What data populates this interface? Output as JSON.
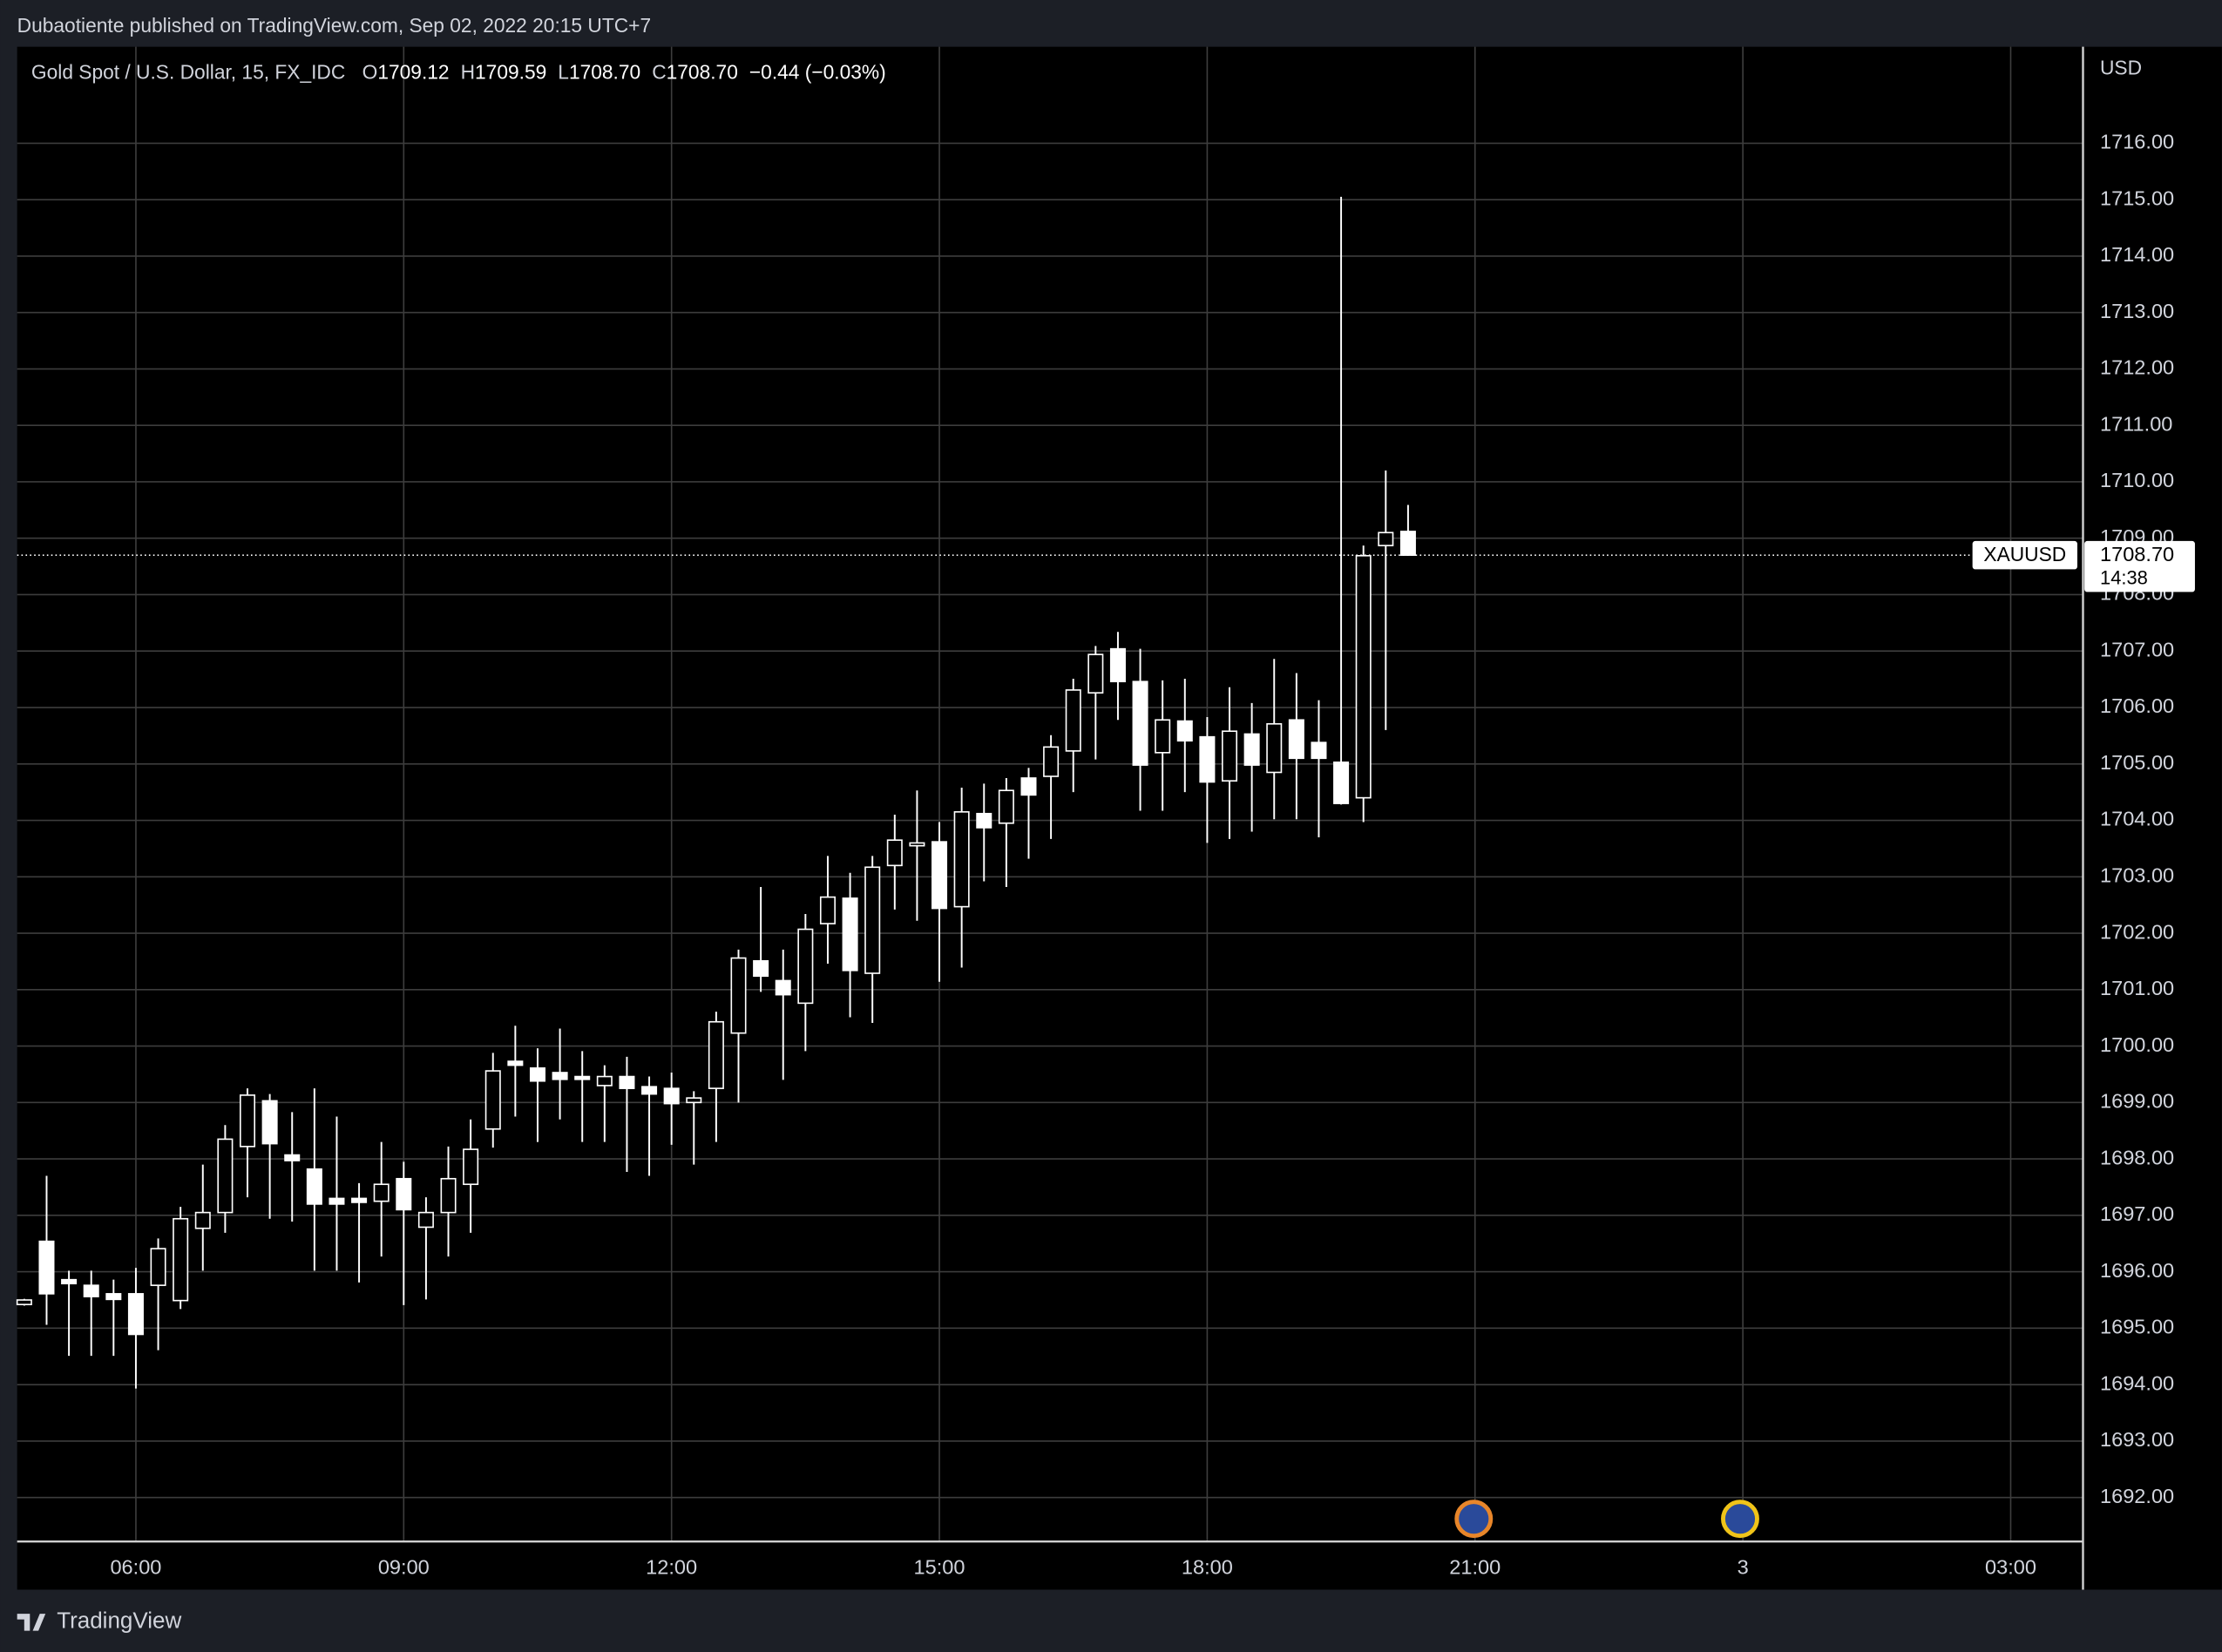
{
  "header": {
    "published": "Dubaotiente published on TradingView.com, Sep 02, 2022 20:15 UTC+7",
    "ohlc": [
      {
        "label": "O",
        "value": "1709.12"
      },
      {
        "label": "H",
        "value": "1709.59"
      },
      {
        "label": "L",
        "value": "1708.70"
      },
      {
        "label": "C",
        "value": "1708.70"
      }
    ],
    "change": "−0.44 (−0.03%)"
  },
  "footer": {
    "brand": "TradingView"
  },
  "chart_data": {
    "type": "candlestick",
    "title": "Gold Spot / U.S. Dollar, 15, FX_IDC",
    "symbol": "XAUUSD",
    "currency": "USD",
    "countdown": "14:38",
    "last_price": {
      "value": 1708.7,
      "label": "1708.70"
    },
    "grid": true,
    "grid_color": "#3d3d3d",
    "x": [
      4.75,
      5,
      5.25,
      5.5,
      5.75,
      6,
      6.25,
      6.5,
      6.75,
      7,
      7.25,
      7.5,
      7.75,
      8,
      8.25,
      8.5,
      8.75,
      9,
      9.25,
      9.5,
      9.75,
      10,
      10.25,
      10.5,
      10.75,
      11,
      11.25,
      11.5,
      11.75,
      12,
      12.25,
      12.5,
      12.75,
      13,
      13.25,
      13.5,
      13.75,
      14,
      14.25,
      14.5,
      14.75,
      15,
      15.25,
      15.5,
      15.75,
      16,
      16.25,
      16.5,
      16.75,
      17,
      17.25,
      17.5,
      17.75,
      18,
      18.25,
      18.5,
      18.75,
      19,
      19.25,
      19.5,
      19.75,
      20,
      20.25
    ],
    "series": [
      {
        "up_color": "#000000",
        "down_color": "#ffffff",
        "border_color": "#ffffff",
        "open": [
          1695.42,
          1696.54,
          1695.86,
          1695.76,
          1695.61,
          1695.61,
          1695.76,
          1695.49,
          1696.77,
          1697.05,
          1698.22,
          1699.03,
          1698.07,
          1697.82,
          1697.3,
          1697.3,
          1697.25,
          1697.65,
          1696.79,
          1697.05,
          1697.55,
          1698.53,
          1699.73,
          1699.61,
          1699.53,
          1699.46,
          1699.3,
          1699.46,
          1699.28,
          1699.25,
          1699.0,
          1699.25,
          1700.23,
          1701.51,
          1701.16,
          1700.76,
          1702.17,
          1702.62,
          1701.29,
          1703.2,
          1703.55,
          1703.62,
          1702.47,
          1704.12,
          1703.95,
          1704.75,
          1704.78,
          1705.23,
          1706.26,
          1707.04,
          1706.46,
          1705.2,
          1705.76,
          1705.48,
          1704.7,
          1705.53,
          1704.85,
          1705.78,
          1705.38,
          1705.03,
          1704.4,
          1708.87,
          1709.12
        ],
        "high": [
          1695.52,
          1697.7,
          1696.02,
          1696.02,
          1695.86,
          1696.07,
          1696.59,
          1697.15,
          1697.9,
          1698.6,
          1699.25,
          1699.15,
          1698.83,
          1699.25,
          1698.75,
          1697.57,
          1698.3,
          1697.95,
          1697.32,
          1698.22,
          1698.7,
          1699.88,
          1700.36,
          1699.96,
          1700.31,
          1699.91,
          1699.66,
          1699.81,
          1699.46,
          1699.53,
          1699.2,
          1700.61,
          1701.71,
          1702.82,
          1701.71,
          1702.34,
          1703.37,
          1703.07,
          1703.37,
          1704.1,
          1704.53,
          1703.97,
          1704.58,
          1704.65,
          1704.75,
          1704.93,
          1705.51,
          1706.51,
          1707.09,
          1707.34,
          1707.04,
          1706.48,
          1706.51,
          1705.83,
          1706.36,
          1706.08,
          1706.86,
          1706.61,
          1706.13,
          1715.05,
          1708.87,
          1710.2,
          1709.59
        ],
        "low": [
          1695.4,
          1695.06,
          1694.51,
          1694.51,
          1694.51,
          1693.93,
          1694.61,
          1695.34,
          1696.02,
          1696.69,
          1697.32,
          1696.94,
          1696.89,
          1696.02,
          1696.02,
          1695.81,
          1696.27,
          1695.41,
          1695.51,
          1696.27,
          1696.69,
          1698.2,
          1698.75,
          1698.3,
          1698.7,
          1698.3,
          1698.3,
          1697.77,
          1697.7,
          1698.25,
          1697.9,
          1698.3,
          1699.0,
          1700.96,
          1699.4,
          1699.91,
          1701.46,
          1700.51,
          1700.41,
          1702.42,
          1702.22,
          1701.14,
          1701.39,
          1702.92,
          1702.82,
          1703.32,
          1703.67,
          1704.5,
          1705.08,
          1705.78,
          1704.17,
          1704.17,
          1704.5,
          1703.6,
          1703.67,
          1703.8,
          1704.02,
          1704.02,
          1703.7,
          1704.28,
          1703.97,
          1705.6,
          1708.7
        ],
        "close": [
          1695.5,
          1695.61,
          1695.79,
          1695.56,
          1695.51,
          1694.89,
          1696.41,
          1696.94,
          1697.05,
          1698.35,
          1699.13,
          1698.27,
          1697.97,
          1697.2,
          1697.2,
          1697.23,
          1697.55,
          1697.1,
          1697.05,
          1697.65,
          1698.17,
          1699.56,
          1699.66,
          1699.38,
          1699.41,
          1699.41,
          1699.46,
          1699.25,
          1699.15,
          1698.98,
          1699.08,
          1700.43,
          1701.56,
          1701.24,
          1700.91,
          1702.07,
          1702.64,
          1701.34,
          1703.17,
          1703.65,
          1703.6,
          1702.44,
          1704.15,
          1703.87,
          1704.53,
          1704.45,
          1705.3,
          1706.31,
          1706.94,
          1706.46,
          1704.98,
          1705.78,
          1705.41,
          1704.68,
          1705.58,
          1704.98,
          1705.71,
          1705.1,
          1705.1,
          1704.3,
          1708.69,
          1709.1,
          1708.7
        ]
      }
    ],
    "xlim": [
      4.67,
      27.81
    ],
    "xticks": [
      {
        "value": 6,
        "label": "06:00"
      },
      {
        "value": 9,
        "label": "09:00"
      },
      {
        "value": 12,
        "label": "12:00"
      },
      {
        "value": 15,
        "label": "15:00"
      },
      {
        "value": 18,
        "label": "18:00"
      },
      {
        "value": 21,
        "label": "21:00"
      },
      {
        "value": 24,
        "label": "3"
      },
      {
        "value": 27,
        "label": "03:00"
      }
    ],
    "ylim": [
      1691.22,
      1717.71
    ],
    "yticks": [
      {
        "value": 1692,
        "label": "1692.00"
      },
      {
        "value": 1693,
        "label": "1693.00"
      },
      {
        "value": 1694,
        "label": "1694.00"
      },
      {
        "value": 1695,
        "label": "1695.00"
      },
      {
        "value": 1696,
        "label": "1696.00"
      },
      {
        "value": 1697,
        "label": "1697.00"
      },
      {
        "value": 1698,
        "label": "1698.00"
      },
      {
        "value": 1699,
        "label": "1699.00"
      },
      {
        "value": 1700,
        "label": "1700.00"
      },
      {
        "value": 1701,
        "label": "1701.00"
      },
      {
        "value": 1702,
        "label": "1702.00"
      },
      {
        "value": 1703,
        "label": "1703.00"
      },
      {
        "value": 1704,
        "label": "1704.00"
      },
      {
        "value": 1705,
        "label": "1705.00"
      },
      {
        "value": 1706,
        "label": "1706.00"
      },
      {
        "value": 1707,
        "label": "1707.00"
      },
      {
        "value": 1708,
        "label": "1708.00"
      },
      {
        "value": 1709,
        "label": "1709.00"
      },
      {
        "value": 1710,
        "label": "1710.00"
      },
      {
        "value": 1711,
        "label": "1711.00"
      },
      {
        "value": 1712,
        "label": "1712.00"
      },
      {
        "value": 1713,
        "label": "1713.00"
      },
      {
        "value": 1714,
        "label": "1714.00"
      },
      {
        "value": 1715,
        "label": "1715.00"
      },
      {
        "value": 1716,
        "label": "1716.00"
      }
    ]
  }
}
